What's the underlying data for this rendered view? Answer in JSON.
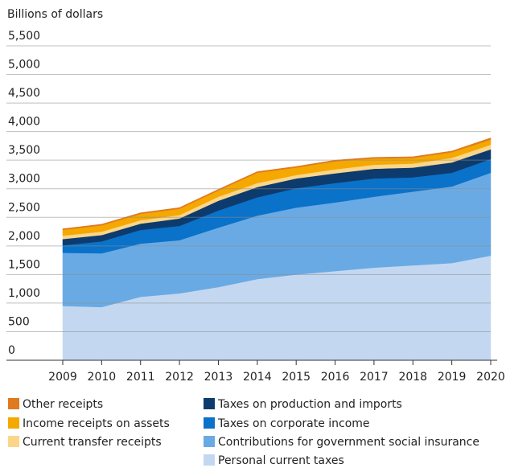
{
  "chart_data": {
    "type": "stacked_area",
    "y_axis_label": "Billions of dollars",
    "categories": [
      "2009",
      "2010",
      "2011",
      "2012",
      "2013",
      "2014",
      "2015",
      "2016",
      "2017",
      "2018",
      "2019",
      "2020"
    ],
    "ylim": [
      0,
      5500
    ],
    "yticks": [
      0,
      500,
      {
        "value": 1000,
        "label": "1,000"
      },
      {
        "value": 1500,
        "label": "1,500"
      },
      {
        "value": 2000,
        "label": "2,000"
      },
      {
        "value": 2500,
        "label": "2,500"
      },
      {
        "value": 3000,
        "label": "3,000"
      },
      {
        "value": 3500,
        "label": "3,500"
      },
      {
        "value": 4000,
        "label": "4,000"
      },
      {
        "value": 4500,
        "label": "4,500"
      },
      {
        "value": 5000,
        "label": "5,000"
      },
      {
        "value": 5500,
        "label": "5,500"
      }
    ],
    "grid": true,
    "series": [
      {
        "name": "Personal current taxes",
        "color": "#c3d8f0",
        "values": [
          950,
          930,
          1110,
          1170,
          1280,
          1420,
          1500,
          1560,
          1620,
          1660,
          1700,
          1830
        ]
      },
      {
        "name": "Contributions for government social insurance",
        "color": "#6aaae4",
        "values": [
          930,
          940,
          930,
          930,
          1040,
          1110,
          1170,
          1200,
          1240,
          1290,
          1340,
          1450
        ]
      },
      {
        "name": "Taxes on corporate income",
        "color": "#0a72c9",
        "values": [
          130,
          210,
          240,
          250,
          300,
          320,
          340,
          340,
          320,
          250,
          240,
          240
        ]
      },
      {
        "name": "Taxes on production and imports",
        "color": "#0d3b6e",
        "values": [
          110,
          110,
          110,
          130,
          170,
          180,
          170,
          170,
          170,
          170,
          180,
          170
        ]
      },
      {
        "name": "Current transfer receipts",
        "color": "#fbd68a",
        "values": [
          60,
          60,
          60,
          60,
          70,
          70,
          60,
          70,
          70,
          70,
          80,
          80
        ]
      },
      {
        "name": "Income receipts on assets",
        "color": "#f5a800",
        "values": [
          100,
          110,
          110,
          110,
          110,
          180,
          130,
          140,
          110,
          100,
          100,
          90
        ]
      },
      {
        "name": "Other receipts",
        "color": "#e07a1f",
        "values": [
          20,
          20,
          20,
          20,
          20,
          20,
          20,
          20,
          20,
          20,
          20,
          30
        ]
      }
    ]
  }
}
